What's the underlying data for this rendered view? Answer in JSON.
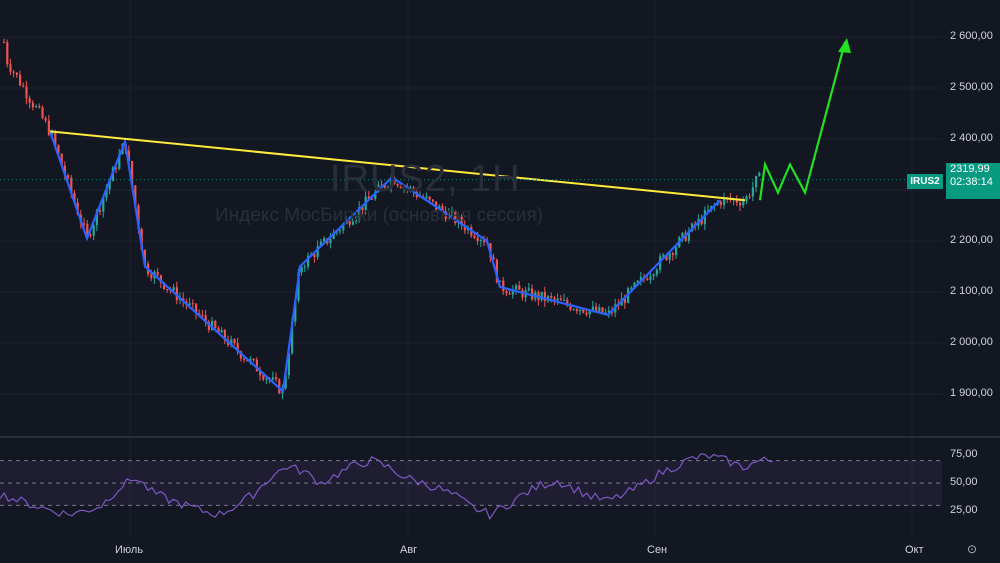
{
  "symbol": "IRUS2, 1H",
  "subtitle": "Индекс МосБиржи (основная сессия)",
  "ticker_badge": "IRUS2",
  "last_price": "2319,99",
  "countdown": "02:38:14",
  "colors": {
    "background": "#131722",
    "up": "#26a69a",
    "down": "#ef5350",
    "pattern": "#2962ff",
    "neckline": "#ffeb3b",
    "projection": "#22e022",
    "rsi": "#7e57c2",
    "badge": "#089981"
  },
  "price_axis": [
    "2 600,00",
    "2 500,00",
    "2 400,00",
    "2 300,00",
    "2 200,00",
    "2 100,00",
    "2 000,00",
    "1 900,00"
  ],
  "rsi_axis": [
    "75,00",
    "50,00",
    "25,00"
  ],
  "time_axis": [
    "Июль",
    "Авг",
    "Сен",
    "Окт"
  ],
  "chart_data": {
    "type": "line",
    "title": "IRUS2, 1H",
    "subtitle": "Индекс МосБиржи (основная сессия)",
    "ylim": [
      1850,
      2650
    ],
    "x": [
      "Июнь-21",
      "Июнь-25",
      "Июнь-28",
      "Июль-01",
      "Июль-03",
      "Июль-24",
      "Июль-29",
      "Авг-01",
      "Авг-03",
      "Авг-27",
      "Авг-28",
      "Сен-05",
      "Сен-07",
      "Сен-10",
      "Сен-12",
      "Сен-14"
    ],
    "series": [
      {
        "values": [
          2560,
          2415,
          2205,
          2395,
          2150,
          1905,
          2150,
          2325,
          2200,
          2110,
          2055,
          2280,
          2280,
          2320,
          2350,
          2590
        ]
      }
    ],
    "overlays": [
      {
        "name": "neckline",
        "points": [
          [
            2415
          ],
          [
            2280
          ]
        ]
      },
      {
        "name": "projection",
        "values": [
          2280,
          2350,
          2295,
          2350,
          2295,
          2590
        ]
      }
    ],
    "rsi": {
      "ylim": [
        15,
        80
      ],
      "levels": [
        70,
        50,
        30
      ],
      "values": [
        40,
        35,
        30,
        26,
        22,
        25,
        30,
        45,
        55,
        42,
        35,
        30,
        25,
        22,
        30,
        40,
        55,
        65,
        60,
        50,
        58,
        66,
        70,
        64,
        55,
        50,
        45,
        38,
        28,
        22,
        30,
        40,
        48,
        52,
        45,
        38,
        34,
        40,
        48,
        58,
        65,
        72,
        74,
        70,
        64,
        70
      ]
    }
  }
}
